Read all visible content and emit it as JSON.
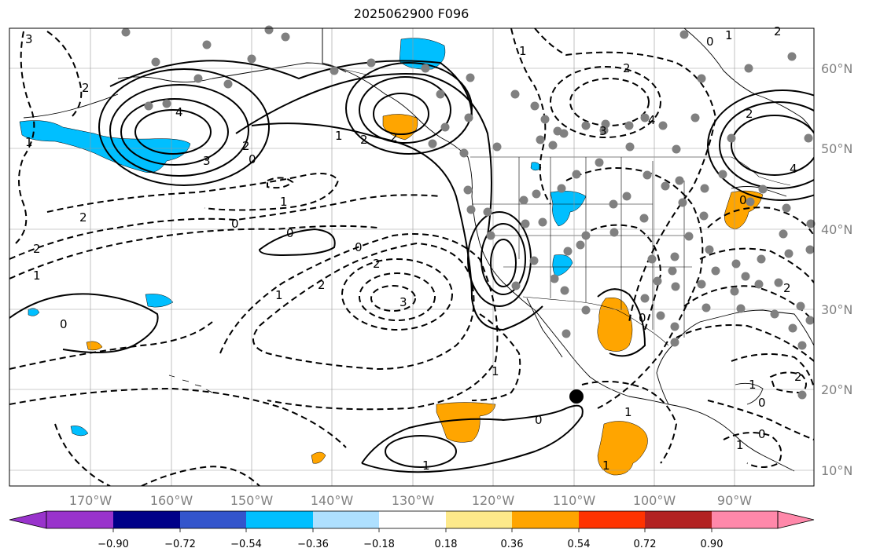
{
  "title": "2025062900 F096",
  "longitude_labels": [
    "170°W",
    "160°W",
    "150°W",
    "140°W",
    "130°W",
    "120°W",
    "110°W",
    "100°W",
    "90°W"
  ],
  "latitude_labels": [
    "60°N",
    "50°N",
    "40°N",
    "30°N",
    "20°N",
    "10°N"
  ],
  "colorbar": {
    "colors": [
      "#9933cc",
      "#000088",
      "#3355cc",
      "#00bfff",
      "#aee0ff",
      "#ffffff",
      "#fde98a",
      "#ffa500",
      "#ff3300",
      "#b22222",
      "#ff88aa"
    ],
    "tick_labels": [
      "−0.90",
      "−0.72",
      "−0.54",
      "−0.36",
      "−0.18",
      "0.18",
      "0.36",
      "0.54",
      "0.72",
      "0.90"
    ]
  },
  "contour_labels": [
    "3",
    "2",
    "4",
    "3",
    "2",
    "1",
    "0",
    "1",
    "2",
    "0",
    "2",
    "1",
    "0",
    "0",
    "2",
    "2",
    "3",
    "1",
    "1",
    "0",
    "1",
    "1",
    "0",
    "2",
    "1",
    "2",
    "2",
    "4",
    "1",
    "1",
    "2",
    "0",
    "0",
    "2",
    "1",
    "1",
    "1",
    "0",
    "0",
    "2",
    "3",
    "4",
    "0",
    "2"
  ],
  "colors": {
    "positive_fill": "#ffa500",
    "negative_fill": "#00bfff",
    "dots": "#808080",
    "grid": "#999999"
  }
}
